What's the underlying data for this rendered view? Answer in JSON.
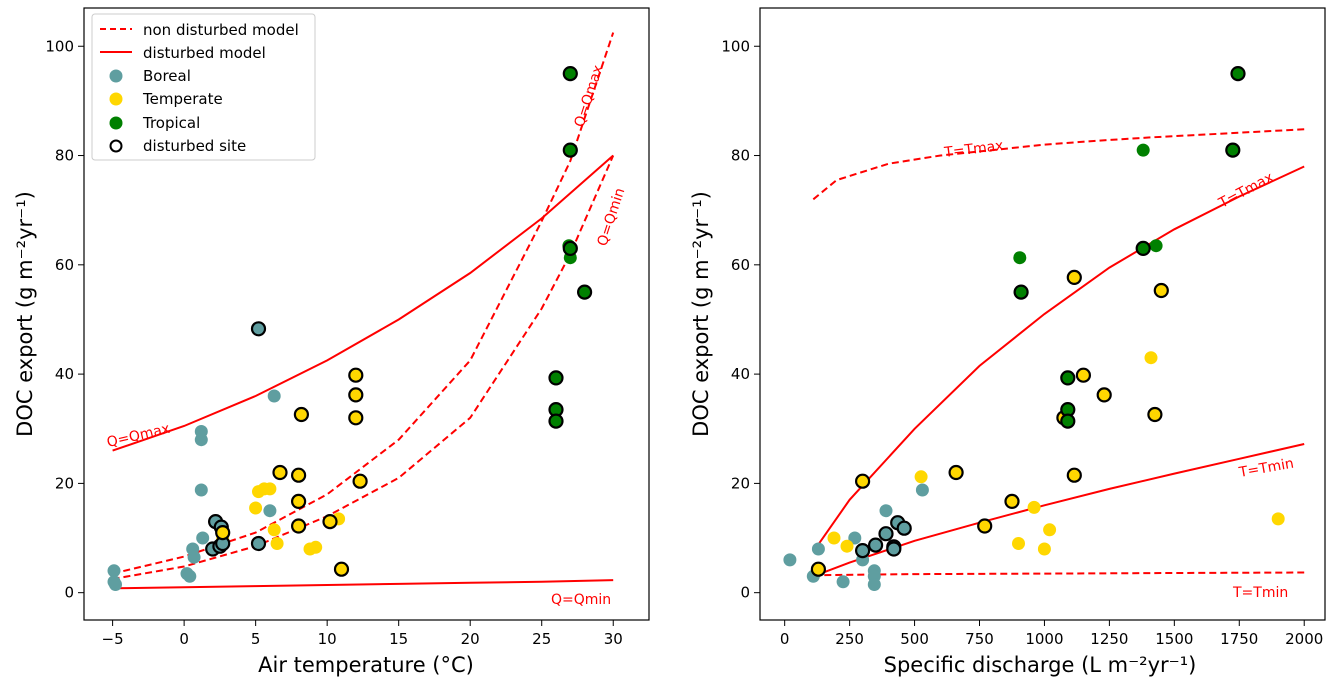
{
  "colors": {
    "boreal": "#5f9ea0",
    "temperate": "#ffd700",
    "tropical": "#008000",
    "model": "#ff0000",
    "disturbed_edge": "#000000"
  },
  "legend": {
    "non_disturbed_model": "non disturbed model",
    "disturbed_model": "disturbed model",
    "boreal": "Boreal",
    "temperate": "Temperate",
    "tropical": "Tropical",
    "disturbed_site": "disturbed site"
  },
  "chart_data": [
    {
      "type": "scatter",
      "title": "",
      "xlabel": "Air temperature (°C)",
      "ylabel": "DOC export (g m⁻²yr⁻¹)",
      "xlim": [
        -7,
        32.5
      ],
      "ylim": [
        -5,
        107
      ],
      "xticks": [
        -5,
        0,
        5,
        10,
        15,
        20,
        25,
        30
      ],
      "yticks": [
        0,
        20,
        40,
        60,
        80,
        100
      ],
      "grid": false,
      "legend_position": "top-left",
      "curve_labels": [
        "Q=Qmax",
        "Q=Qmax",
        "Q=Qmin",
        "Q=Qmin"
      ],
      "series": [
        {
          "name": "Boreal",
          "points": [
            [
              -4.9,
              4.0
            ],
            [
              -4.9,
              2.0
            ],
            [
              -4.8,
              1.5
            ],
            [
              0.2,
              3.5
            ],
            [
              0.4,
              3.0
            ],
            [
              0.6,
              8.0
            ],
            [
              0.7,
              6.5
            ],
            [
              1.2,
              29.5
            ],
            [
              1.2,
              28.0
            ],
            [
              1.2,
              18.8
            ],
            [
              1.3,
              10.0
            ],
            [
              6.0,
              15.0
            ],
            [
              6.3,
              36.0
            ]
          ]
        },
        {
          "name": "Temperate",
          "points": [
            [
              2.7,
              10.0
            ],
            [
              5.0,
              15.5
            ],
            [
              5.2,
              18.5
            ],
            [
              5.6,
              19.0
            ],
            [
              6.0,
              19.0
            ],
            [
              6.3,
              11.5
            ],
            [
              6.5,
              9.0
            ],
            [
              8.8,
              8.0
            ],
            [
              9.2,
              8.3
            ],
            [
              10.8,
              13.5
            ]
          ]
        },
        {
          "name": "Tropical",
          "points": [
            [
              26.9,
              63.5
            ],
            [
              27.0,
              61.3
            ]
          ]
        },
        {
          "name": "Boreal disturbed",
          "points": [
            [
              2.0,
              8.0
            ],
            [
              2.2,
              13.0
            ],
            [
              2.5,
              8.5
            ],
            [
              2.6,
              12.0
            ],
            [
              2.7,
              9.0
            ],
            [
              5.2,
              9.0
            ],
            [
              5.2,
              48.3
            ]
          ]
        },
        {
          "name": "Temperate disturbed",
          "points": [
            [
              2.7,
              11.0
            ],
            [
              6.7,
              22.0
            ],
            [
              8.0,
              21.5
            ],
            [
              8.0,
              16.7
            ],
            [
              8.0,
              12.2
            ],
            [
              8.2,
              32.6
            ],
            [
              10.2,
              13.0
            ],
            [
              11.0,
              4.3
            ],
            [
              12.0,
              39.8
            ],
            [
              12.0,
              36.2
            ],
            [
              12.0,
              32.0
            ],
            [
              12.3,
              20.4
            ]
          ]
        },
        {
          "name": "Tropical disturbed",
          "points": [
            [
              26.0,
              39.3
            ],
            [
              26.0,
              33.5
            ],
            [
              26.0,
              31.4
            ],
            [
              27.0,
              95.0
            ],
            [
              27.0,
              81.0
            ],
            [
              27.0,
              63.0
            ],
            [
              28.0,
              55.0
            ]
          ]
        }
      ],
      "models": [
        {
          "name": "non disturbed model",
          "style": "dashed",
          "curve": "Q=Qmax",
          "x": [
            -5,
            0,
            5,
            10,
            15,
            20,
            25,
            27,
            30
          ],
          "y": [
            3.5,
            6.6,
            11.0,
            18.0,
            28.0,
            42.5,
            68.0,
            79.0,
            102.5
          ]
        },
        {
          "name": "non disturbed model",
          "style": "dashed",
          "curve": "Q=Qmin",
          "x": [
            -5,
            0,
            5,
            10,
            15,
            20,
            25,
            27,
            30
          ],
          "y": [
            2.5,
            4.8,
            8.5,
            14.0,
            21.0,
            32.0,
            52.0,
            62.0,
            80.0
          ]
        },
        {
          "name": "disturbed model",
          "style": "solid",
          "curve": "Q=Qmax",
          "x": [
            -5,
            0,
            5,
            10,
            15,
            20,
            25,
            30
          ],
          "y": [
            26.0,
            30.5,
            36.0,
            42.5,
            50.0,
            58.5,
            68.5,
            80.0
          ]
        },
        {
          "name": "disturbed model",
          "style": "solid",
          "curve": "Q=Qmin",
          "x": [
            -5,
            0,
            5,
            10,
            15,
            20,
            25,
            30
          ],
          "y": [
            0.8,
            1.0,
            1.2,
            1.4,
            1.6,
            1.8,
            2.0,
            2.3
          ]
        }
      ]
    },
    {
      "type": "scatter",
      "title": "",
      "xlabel": "Specific discharge (L m⁻²yr⁻¹)",
      "ylabel": "DOC export (g m⁻²yr⁻¹)",
      "xlim": [
        -95,
        2080
      ],
      "ylim": [
        -5,
        107
      ],
      "xticks": [
        0,
        250,
        500,
        750,
        1000,
        1250,
        1500,
        1750,
        2000
      ],
      "yticks": [
        0,
        20,
        40,
        60,
        80,
        100
      ],
      "grid": false,
      "legend_position": "none",
      "curve_labels": [
        "T=Tmax",
        "T=Tmax",
        "T=Tmin",
        "T=Tmin"
      ],
      "series": [
        {
          "name": "Boreal",
          "points": [
            [
              20,
              6.0
            ],
            [
              110,
              3.0
            ],
            [
              130,
              8.0
            ],
            [
              225,
              2.0
            ],
            [
              270,
              10.0
            ],
            [
              300,
              6.0
            ],
            [
              345,
              4.0
            ],
            [
              345,
              3.0
            ],
            [
              345,
              1.5
            ],
            [
              390,
              15.0
            ],
            [
              530,
              18.8
            ]
          ]
        },
        {
          "name": "Temperate",
          "points": [
            [
              190,
              10.0
            ],
            [
              240,
              8.5
            ],
            [
              525,
              21.2
            ],
            [
              900,
              9.0
            ],
            [
              960,
              15.6
            ],
            [
              1000,
              8.0
            ],
            [
              1020,
              11.5
            ],
            [
              1410,
              43.0
            ],
            [
              1900,
              13.5
            ]
          ]
        },
        {
          "name": "Tropical",
          "points": [
            [
              905,
              61.3
            ],
            [
              1380,
              81.0
            ],
            [
              1430,
              63.5
            ]
          ]
        },
        {
          "name": "Boreal disturbed",
          "points": [
            [
              300,
              7.7
            ],
            [
              350,
              8.7
            ],
            [
              390,
              10.8
            ],
            [
              420,
              8.4
            ],
            [
              420,
              8.0
            ],
            [
              435,
              12.8
            ],
            [
              460,
              11.8
            ]
          ]
        },
        {
          "name": "Temperate disturbed",
          "points": [
            [
              130,
              4.3
            ],
            [
              300,
              20.4
            ],
            [
              660,
              22.0
            ],
            [
              770,
              12.2
            ],
            [
              875,
              16.7
            ],
            [
              1075,
              32.0
            ],
            [
              1115,
              21.5
            ],
            [
              1115,
              57.7
            ],
            [
              1150,
              39.8
            ],
            [
              1230,
              36.2
            ],
            [
              1425,
              32.6
            ],
            [
              1450,
              55.3
            ]
          ]
        },
        {
          "name": "Tropical disturbed",
          "points": [
            [
              910,
              55.0
            ],
            [
              1090,
              39.3
            ],
            [
              1090,
              33.5
            ],
            [
              1090,
              31.4
            ],
            [
              1380,
              63.0
            ],
            [
              1725,
              81.0
            ],
            [
              1745,
              95.0
            ]
          ]
        }
      ],
      "models": [
        {
          "name": "non disturbed model",
          "style": "dashed",
          "curve": "T=Tmax",
          "x": [
            110,
            200,
            400,
            600,
            800,
            1000,
            1200,
            1400,
            1600,
            1800,
            2000
          ],
          "y": [
            72.0,
            75.5,
            78.5,
            80.0,
            81.0,
            82.0,
            82.7,
            83.3,
            83.8,
            84.3,
            84.8
          ]
        },
        {
          "name": "non disturbed model",
          "style": "dashed",
          "curve": "T=Tmin",
          "x": [
            110,
            500,
            1000,
            1500,
            2000
          ],
          "y": [
            3.2,
            3.4,
            3.5,
            3.6,
            3.7
          ]
        },
        {
          "name": "disturbed model",
          "style": "solid",
          "curve": "T=Tmax",
          "x": [
            110,
            250,
            500,
            750,
            1000,
            1250,
            1500,
            1750,
            2000
          ],
          "y": [
            7.5,
            17.0,
            30.0,
            41.5,
            51.0,
            59.5,
            66.5,
            72.5,
            78.0
          ]
        },
        {
          "name": "disturbed model",
          "style": "solid",
          "curve": "T=Tmin",
          "x": [
            110,
            250,
            500,
            750,
            1000,
            1250,
            1500,
            1750,
            2000
          ],
          "y": [
            3.0,
            5.5,
            9.5,
            12.8,
            16.0,
            19.0,
            21.8,
            24.5,
            27.2
          ]
        }
      ]
    }
  ]
}
